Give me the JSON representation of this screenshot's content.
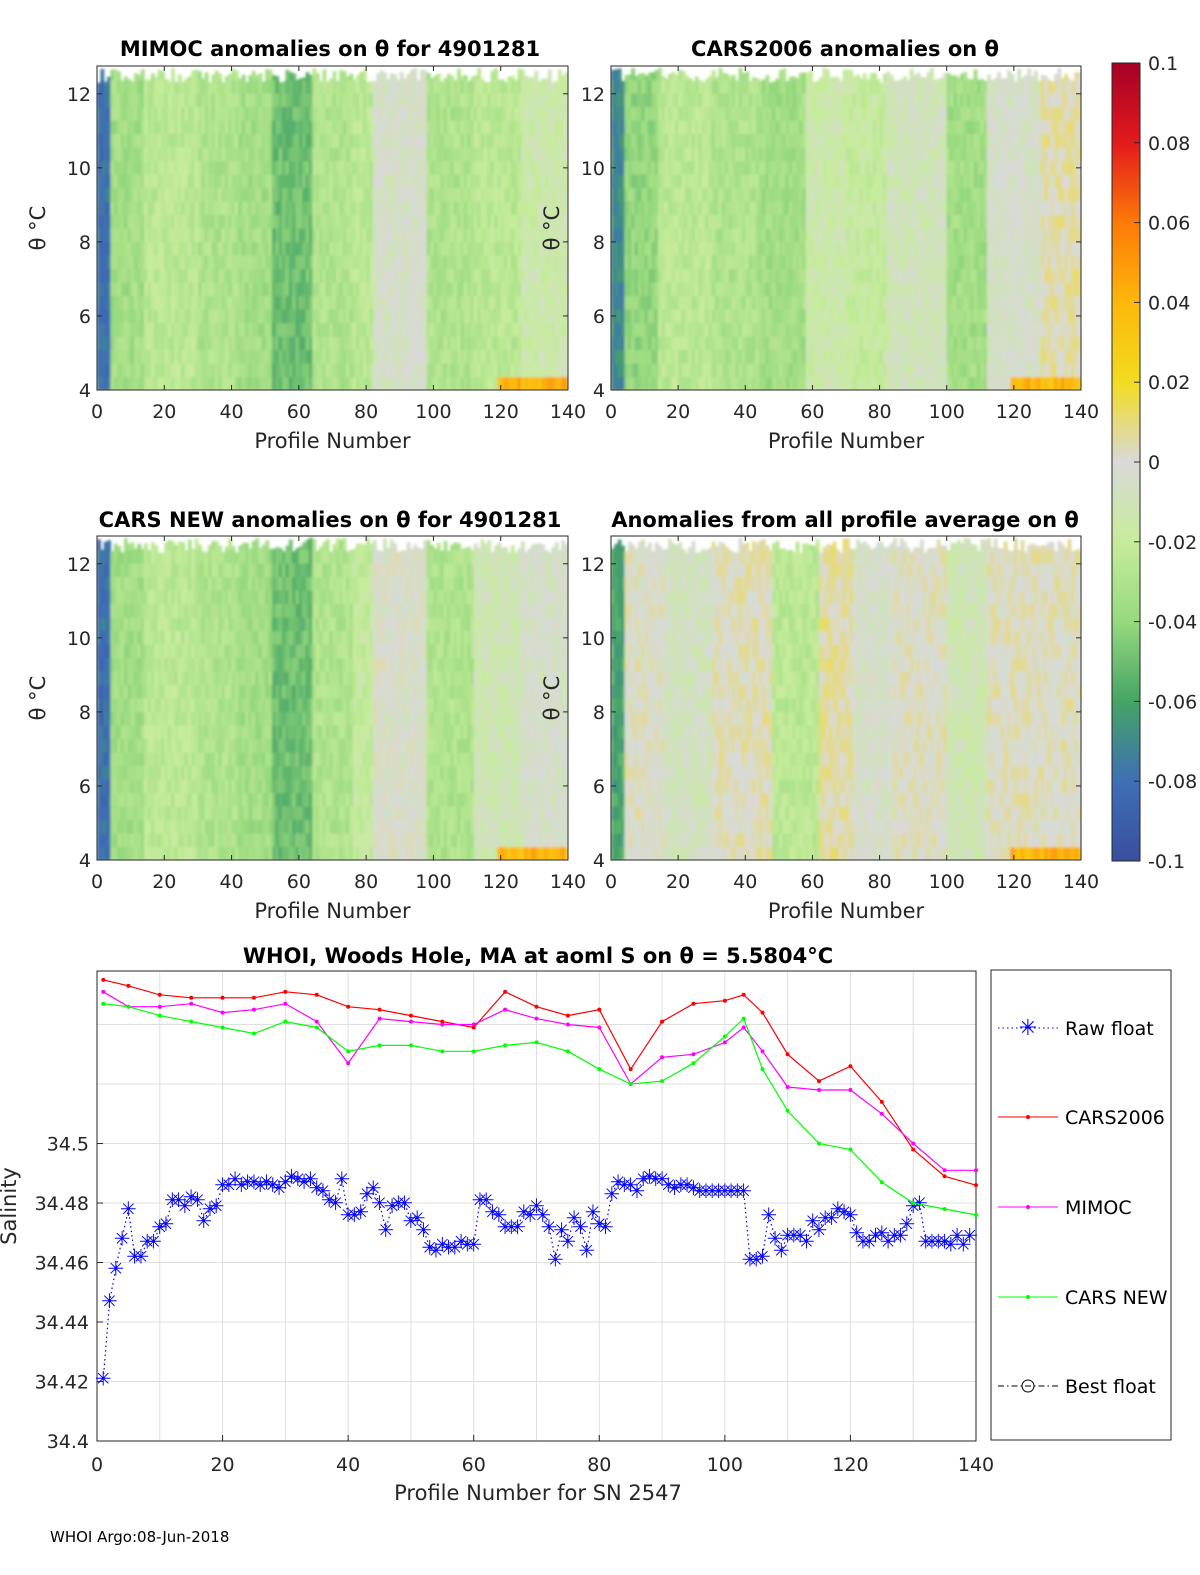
{
  "page": {
    "footer": "WHOI Argo:08-Jun-2018"
  },
  "panels": [
    {
      "id": "mimoc",
      "title": "MIMOC anomalies on θ  for 4901281",
      "xlabel": "Profile Number",
      "ylabel": "θ °C",
      "x_ticks": [
        "0",
        "20",
        "40",
        "60",
        "80",
        "100",
        "120",
        "140"
      ],
      "y_ticks": [
        "4",
        "6",
        "8",
        "10",
        "12"
      ],
      "bands": [
        {
          "from": 0,
          "to": 4,
          "level": -0.08
        },
        {
          "from": 4,
          "to": 14,
          "level": -0.035
        },
        {
          "from": 14,
          "to": 30,
          "level": -0.025
        },
        {
          "from": 30,
          "to": 42,
          "level": -0.03
        },
        {
          "from": 42,
          "to": 52,
          "level": -0.035
        },
        {
          "from": 52,
          "to": 64,
          "level": -0.05
        },
        {
          "from": 64,
          "to": 76,
          "level": -0.03
        },
        {
          "from": 76,
          "to": 82,
          "level": -0.025
        },
        {
          "from": 82,
          "to": 98,
          "level": -0.005
        },
        {
          "from": 98,
          "to": 112,
          "level": -0.03
        },
        {
          "from": 112,
          "to": 126,
          "level": -0.025
        },
        {
          "from": 126,
          "to": 140,
          "level": -0.015
        }
      ]
    },
    {
      "id": "cars2006",
      "title": "CARS2006 anomalies on θ",
      "xlabel": "Profile Number",
      "ylabel": "θ °C",
      "x_ticks": [
        "0",
        "20",
        "40",
        "60",
        "80",
        "100",
        "120",
        "140"
      ],
      "y_ticks": [
        "4",
        "6",
        "8",
        "10",
        "12"
      ],
      "bands": [
        {
          "from": 0,
          "to": 4,
          "level": -0.07
        },
        {
          "from": 4,
          "to": 14,
          "level": -0.04
        },
        {
          "from": 14,
          "to": 30,
          "level": -0.025
        },
        {
          "from": 30,
          "to": 44,
          "level": -0.03
        },
        {
          "from": 44,
          "to": 58,
          "level": -0.035
        },
        {
          "from": 58,
          "to": 70,
          "level": -0.015
        },
        {
          "from": 70,
          "to": 82,
          "level": -0.02
        },
        {
          "from": 82,
          "to": 100,
          "level": -0.01
        },
        {
          "from": 100,
          "to": 112,
          "level": -0.035
        },
        {
          "from": 112,
          "to": 128,
          "level": -0.005
        },
        {
          "from": 128,
          "to": 140,
          "level": 0.005
        }
      ]
    },
    {
      "id": "carsnew",
      "title": "CARS NEW anomalies on θ for 4901281",
      "xlabel": "Profile Number",
      "ylabel": "θ °C",
      "x_ticks": [
        "0",
        "20",
        "40",
        "60",
        "80",
        "100",
        "120",
        "140"
      ],
      "y_ticks": [
        "4",
        "6",
        "8",
        "10",
        "12"
      ],
      "bands": [
        {
          "from": 0,
          "to": 4,
          "level": -0.08
        },
        {
          "from": 4,
          "to": 14,
          "level": -0.035
        },
        {
          "from": 14,
          "to": 30,
          "level": -0.025
        },
        {
          "from": 30,
          "to": 42,
          "level": -0.03
        },
        {
          "from": 42,
          "to": 52,
          "level": -0.035
        },
        {
          "from": 52,
          "to": 64,
          "level": -0.05
        },
        {
          "from": 64,
          "to": 76,
          "level": -0.03
        },
        {
          "from": 76,
          "to": 82,
          "level": -0.02
        },
        {
          "from": 82,
          "to": 98,
          "level": -0.002
        },
        {
          "from": 98,
          "to": 112,
          "level": -0.03
        },
        {
          "from": 112,
          "to": 126,
          "level": -0.012
        },
        {
          "from": 126,
          "to": 140,
          "level": -0.005
        }
      ]
    },
    {
      "id": "allavg",
      "title": "Anomalies from all profile average on θ",
      "xlabel": "Profile Number",
      "ylabel": "θ °C",
      "x_ticks": [
        "0",
        "20",
        "40",
        "60",
        "80",
        "100",
        "120",
        "140"
      ],
      "y_ticks": [
        "4",
        "6",
        "8",
        "10",
        "12"
      ],
      "bands": [
        {
          "from": 0,
          "to": 4,
          "level": -0.06
        },
        {
          "from": 4,
          "to": 16,
          "level": 0.0
        },
        {
          "from": 16,
          "to": 30,
          "level": -0.008
        },
        {
          "from": 30,
          "to": 48,
          "level": 0.003
        },
        {
          "from": 48,
          "to": 62,
          "level": -0.025
        },
        {
          "from": 62,
          "to": 72,
          "level": 0.006
        },
        {
          "from": 72,
          "to": 84,
          "level": -0.004
        },
        {
          "from": 84,
          "to": 100,
          "level": 0.001
        },
        {
          "from": 100,
          "to": 112,
          "level": -0.012
        },
        {
          "from": 112,
          "to": 140,
          "level": 0.002
        }
      ]
    }
  ],
  "colorbar": {
    "ticks": [
      "0.1",
      "0.08",
      "0.06",
      "0.04",
      "0.02",
      "0",
      "-0.02",
      "-0.04",
      "-0.06",
      "-0.08",
      "-0.1"
    ],
    "stops": [
      "#a50026",
      "#e31a1c",
      "#fd7a08",
      "#fdb70a",
      "#f2dc1f",
      "#d9d9d9",
      "#c6ec9a",
      "#97d97e",
      "#45a465",
      "#3f6fb5",
      "#3a4f9e"
    ]
  },
  "chart_data": [
    {
      "type": "heatmap",
      "title": "MIMOC anomalies on θ  for 4901281",
      "xlabel": "Profile Number",
      "ylabel": "θ °C",
      "xlim": [
        0,
        140
      ],
      "ylim": [
        4,
        12.7
      ],
      "clim": [
        -0.1,
        0.1
      ]
    },
    {
      "type": "heatmap",
      "title": "CARS2006 anomalies on θ",
      "xlabel": "Profile Number",
      "ylabel": "θ °C",
      "xlim": [
        0,
        140
      ],
      "ylim": [
        4,
        12.7
      ],
      "clim": [
        -0.1,
        0.1
      ]
    },
    {
      "type": "heatmap",
      "title": "CARS NEW anomalies on θ for 4901281",
      "xlabel": "Profile Number",
      "ylabel": "θ °C",
      "xlim": [
        0,
        140
      ],
      "ylim": [
        4,
        12.7
      ],
      "clim": [
        -0.1,
        0.1
      ]
    },
    {
      "type": "heatmap",
      "title": "Anomalies from all profile average on θ",
      "xlabel": "Profile Number",
      "ylabel": "θ °C",
      "xlim": [
        0,
        140
      ],
      "ylim": [
        4,
        12.7
      ],
      "clim": [
        -0.1,
        0.1
      ]
    },
    {
      "type": "line",
      "title": "WHOI, Woods Hole, MA at aoml S on θ = 5.5804°C",
      "xlabel": "Profile Number for SN 2547",
      "ylabel": "Salinity",
      "xlim": [
        0,
        140
      ],
      "ylim": [
        34.4,
        34.558
      ],
      "x_ticks": [
        "0",
        "20",
        "40",
        "60",
        "80",
        "100",
        "120",
        "140"
      ],
      "y_ticks": [
        "34.4",
        "34.42",
        "34.44",
        "34.46",
        "34.48",
        "34.5"
      ],
      "grid": true,
      "legend_position": "outside-right",
      "series": [
        {
          "name": "Raw float",
          "color": "#0000ff",
          "marker": "star",
          "style": "dotted",
          "x": [
            1,
            2,
            3,
            4,
            5,
            6,
            7,
            8,
            9,
            10,
            11,
            12,
            13,
            14,
            15,
            16,
            17,
            18,
            19,
            20,
            21,
            22,
            23,
            24,
            25,
            26,
            27,
            28,
            29,
            30,
            31,
            32,
            33,
            34,
            35,
            36,
            37,
            38,
            39,
            40,
            41,
            42,
            43,
            44,
            45,
            46,
            47,
            48,
            49,
            50,
            51,
            52,
            53,
            54,
            55,
            56,
            57,
            58,
            59,
            60,
            61,
            62,
            63,
            64,
            65,
            66,
            67,
            68,
            69,
            70,
            71,
            72,
            73,
            74,
            75,
            76,
            77,
            78,
            79,
            80,
            81,
            82,
            83,
            84,
            85,
            86,
            87,
            88,
            89,
            90,
            91,
            92,
            93,
            94,
            95,
            96,
            97,
            98,
            99,
            100,
            101,
            102,
            103,
            104,
            105,
            106,
            107,
            108,
            109,
            110,
            111,
            112,
            113,
            114,
            115,
            116,
            117,
            118,
            119,
            120,
            121,
            122,
            123,
            124,
            125,
            126,
            127,
            128,
            129,
            130,
            131,
            132,
            133,
            134,
            135,
            136,
            137,
            138,
            139
          ],
          "values": [
            34.421,
            34.447,
            34.458,
            34.468,
            34.478,
            34.462,
            34.462,
            34.467,
            34.467,
            34.472,
            34.473,
            34.481,
            34.481,
            34.479,
            34.482,
            34.481,
            34.474,
            34.478,
            34.479,
            34.486,
            34.486,
            34.488,
            34.486,
            34.487,
            34.487,
            34.486,
            34.487,
            34.486,
            34.485,
            34.487,
            34.489,
            34.488,
            34.487,
            34.488,
            34.485,
            34.484,
            34.481,
            34.48,
            34.488,
            34.476,
            34.476,
            34.477,
            34.483,
            34.485,
            34.48,
            34.471,
            34.479,
            34.48,
            34.48,
            34.474,
            34.475,
            34.471,
            34.465,
            34.464,
            34.466,
            34.465,
            34.465,
            34.467,
            34.466,
            34.466,
            34.481,
            34.481,
            34.477,
            34.476,
            34.472,
            34.472,
            34.472,
            34.477,
            34.476,
            34.479,
            34.476,
            34.472,
            34.461,
            34.471,
            34.467,
            34.475,
            34.472,
            34.464,
            34.477,
            34.473,
            34.472,
            34.483,
            34.487,
            34.486,
            34.486,
            34.484,
            34.488,
            34.489,
            34.488,
            34.488,
            34.486,
            34.485,
            34.486,
            34.486,
            34.485,
            34.484,
            34.484,
            34.484,
            34.484,
            34.484,
            34.484,
            34.484,
            34.484,
            34.461,
            34.461,
            34.462,
            34.476,
            34.468,
            34.464,
            34.469,
            34.469,
            34.469,
            34.467,
            34.474,
            34.471,
            34.475,
            34.475,
            34.478,
            34.477,
            34.476,
            34.47,
            34.467,
            34.467,
            34.469,
            34.47,
            34.467,
            34.469,
            34.469,
            34.473,
            34.479,
            34.48,
            34.467,
            34.467,
            34.467,
            34.467,
            34.466,
            34.469,
            34.466,
            34.469
          ]
        },
        {
          "name": "CARS2006",
          "color": "#ff0000",
          "marker": "dot",
          "style": "solid",
          "x": [
            1,
            5,
            10,
            15,
            20,
            25,
            30,
            35,
            40,
            45,
            50,
            55,
            60,
            65,
            70,
            75,
            80,
            85,
            90,
            95,
            100,
            103,
            106,
            110,
            115,
            120,
            125,
            130,
            135,
            140
          ],
          "values": [
            34.555,
            34.553,
            34.55,
            34.549,
            34.549,
            34.549,
            34.551,
            34.55,
            34.546,
            34.545,
            34.543,
            34.541,
            34.539,
            34.551,
            34.546,
            34.543,
            34.545,
            34.525,
            34.541,
            34.547,
            34.548,
            34.55,
            34.544,
            34.53,
            34.521,
            34.526,
            34.514,
            34.498,
            34.489,
            34.486
          ]
        },
        {
          "name": "MIMOC",
          "color": "#ff00ff",
          "marker": "dot",
          "style": "solid",
          "x": [
            1,
            5,
            10,
            15,
            20,
            25,
            30,
            35,
            40,
            45,
            50,
            55,
            60,
            65,
            70,
            75,
            80,
            85,
            90,
            95,
            100,
            103,
            106,
            110,
            115,
            120,
            125,
            130,
            135,
            140
          ],
          "values": [
            34.551,
            34.546,
            34.546,
            34.547,
            34.544,
            34.545,
            34.547,
            34.541,
            34.527,
            34.542,
            34.541,
            34.54,
            34.54,
            34.545,
            34.542,
            34.54,
            34.539,
            34.52,
            34.529,
            34.53,
            34.534,
            34.539,
            34.531,
            34.519,
            34.518,
            34.518,
            34.51,
            34.5,
            34.491,
            34.491
          ]
        },
        {
          "name": "CARS NEW",
          "color": "#00ff00",
          "marker": "dot",
          "style": "solid",
          "x": [
            1,
            5,
            10,
            15,
            20,
            25,
            30,
            35,
            40,
            45,
            50,
            55,
            60,
            65,
            70,
            75,
            80,
            85,
            90,
            95,
            100,
            103,
            106,
            110,
            115,
            120,
            125,
            130,
            135,
            140
          ],
          "values": [
            34.547,
            34.546,
            34.543,
            34.541,
            34.539,
            34.537,
            34.541,
            34.539,
            34.531,
            34.533,
            34.533,
            34.531,
            34.531,
            34.533,
            34.534,
            34.531,
            34.525,
            34.52,
            34.521,
            34.527,
            34.536,
            34.542,
            34.525,
            34.511,
            34.5,
            34.498,
            34.487,
            34.48,
            34.478,
            34.476
          ]
        },
        {
          "name": "Best float",
          "color": "#000000",
          "marker": "circle",
          "style": "dashdot",
          "x": [],
          "values": []
        }
      ]
    }
  ]
}
